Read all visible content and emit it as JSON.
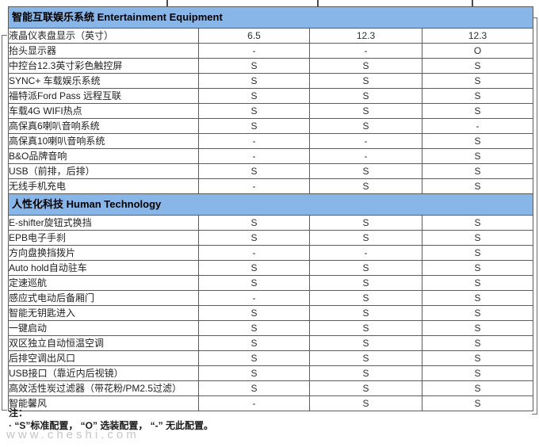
{
  "table": {
    "sections": [
      {
        "title": "智能互联娱乐系统 Entertainment Equipment",
        "rows": [
          {
            "label": "液晶仪表盘显示（英寸）",
            "values": [
              "6.5",
              "12.3",
              "12.3"
            ]
          },
          {
            "label": "抬头显示器",
            "values": [
              "-",
              "-",
              "O"
            ]
          },
          {
            "label": "中控台12.3英寸彩色触控屏",
            "values": [
              "S",
              "S",
              "S"
            ]
          },
          {
            "label": "SYNC+ 车载娱乐系统",
            "values": [
              "S",
              "S",
              "S"
            ]
          },
          {
            "label": "福特派Ford Pass 远程互联",
            "values": [
              "S",
              "S",
              "S"
            ]
          },
          {
            "label": "车载4G WIFI热点",
            "values": [
              "S",
              "S",
              "S"
            ]
          },
          {
            "label": "高保真6喇叭音响系统",
            "values": [
              "S",
              "S",
              "-"
            ]
          },
          {
            "label": "高保真10喇叭音响系统",
            "values": [
              "-",
              "-",
              "S"
            ]
          },
          {
            "label": "B&O品牌音响",
            "values": [
              "-",
              "-",
              "S"
            ]
          },
          {
            "label": "USB（前排，后排）",
            "values": [
              "S",
              "S",
              "S"
            ]
          },
          {
            "label": "无线手机充电",
            "values": [
              "-",
              "S",
              "S"
            ]
          }
        ]
      },
      {
        "title": "人性化科技 Human Technology",
        "rows": [
          {
            "label": "E-shifter旋钮式换挡",
            "values": [
              "S",
              "S",
              "S"
            ]
          },
          {
            "label": "EPB电子手刹",
            "values": [
              "S",
              "S",
              "S"
            ]
          },
          {
            "label": "方向盘换挡拨片",
            "values": [
              "-",
              "-",
              "S"
            ]
          },
          {
            "label": "Auto hold自动驻车",
            "values": [
              "S",
              "S",
              "S"
            ]
          },
          {
            "label": "定速巡航",
            "values": [
              "S",
              "S",
              "S"
            ]
          },
          {
            "label": "感应式电动后备厢门",
            "values": [
              "-",
              "S",
              "S"
            ]
          },
          {
            "label": "智能无钥匙进入",
            "values": [
              "S",
              "S",
              "S"
            ]
          },
          {
            "label": "一键启动",
            "values": [
              "S",
              "S",
              "S"
            ]
          },
          {
            "label": "双区独立自动恒温空调",
            "values": [
              "S",
              "S",
              "S"
            ]
          },
          {
            "label": "后排空调出风口",
            "values": [
              "S",
              "S",
              "S"
            ]
          },
          {
            "label": "USB接口（靠近内后视镜）",
            "values": [
              "S",
              "S",
              "S"
            ]
          },
          {
            "label": "高效活性炭过滤器（带花粉/PM2.5过滤）",
            "values": [
              "S",
              "S",
              "S"
            ]
          },
          {
            "label": "智能馨风",
            "values": [
              "-",
              "S",
              "S"
            ]
          }
        ]
      }
    ]
  },
  "notes": {
    "label": "注：",
    "legend": "· “S”标准配置， “O” 选装配置， “-” 无此配置。"
  },
  "watermark": "www.cheshi.com",
  "colors": {
    "section_header_blue": "#88B6E8",
    "table_border": "#5c5c5c",
    "watermark_gray": "#c6c6c6"
  }
}
